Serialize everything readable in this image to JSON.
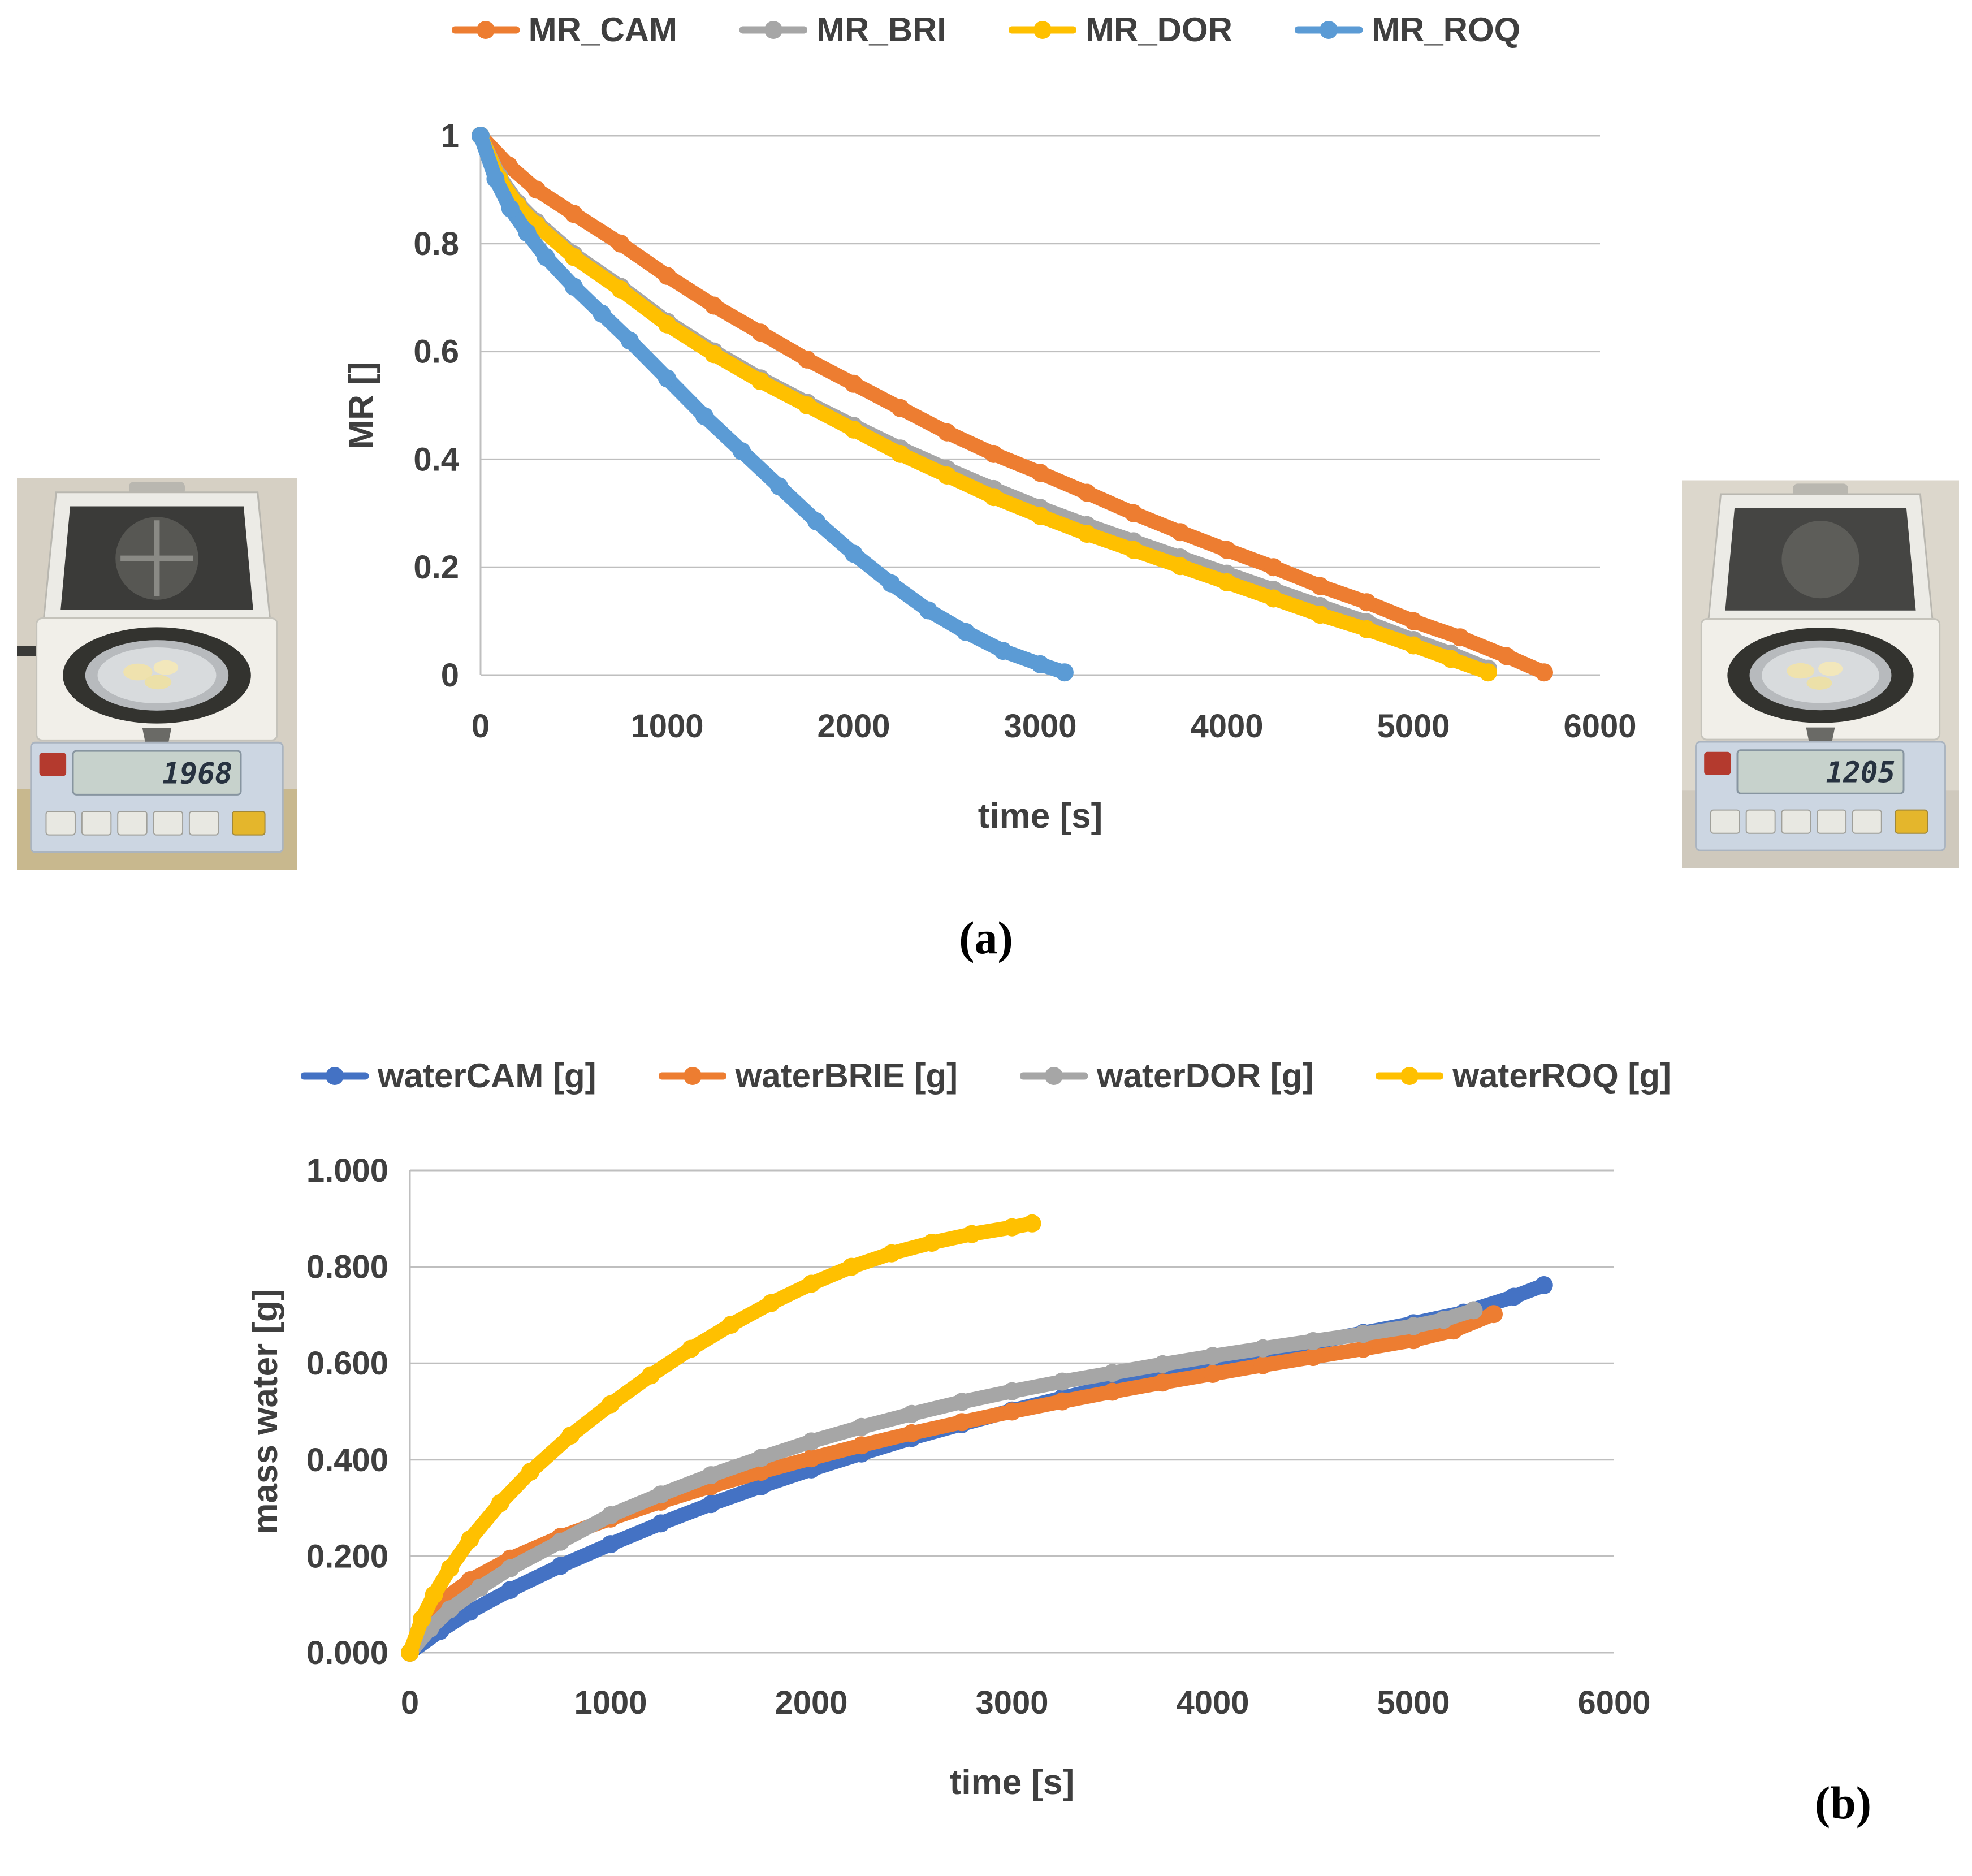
{
  "figure": {
    "caption_a": "(a)",
    "caption_b": "(b)"
  },
  "photos": {
    "left": {
      "display_reading": "1968"
    },
    "right": {
      "display_reading": "1205"
    }
  },
  "chart_data": [
    {
      "type": "line",
      "title": "",
      "xlabel": "time [s]",
      "ylabel": "MR []",
      "xlim": [
        0,
        6000
      ],
      "ylim": [
        0,
        1
      ],
      "xticks": [
        0,
        1000,
        2000,
        3000,
        4000,
        5000,
        6000
      ],
      "xtick_labels": [
        "0",
        "1000",
        "2000",
        "3000",
        "4000",
        "5000",
        "6000"
      ],
      "yticks": [
        0,
        0.2,
        0.4,
        0.6,
        0.8,
        1
      ],
      "ytick_labels": [
        "0",
        "0.2",
        "0.4",
        "0.6",
        "0.8",
        "1"
      ],
      "grid": "horizontal",
      "legend_position": "top",
      "series": [
        {
          "name": "MR_CAM",
          "color": "#ED7D31",
          "points": [
            [
              0,
              1
            ],
            [
              150,
              0.945
            ],
            [
              300,
              0.9
            ],
            [
              500,
              0.855
            ],
            [
              750,
              0.8
            ],
            [
              1000,
              0.74
            ],
            [
              1250,
              0.685
            ],
            [
              1500,
              0.635
            ],
            [
              1750,
              0.585
            ],
            [
              2000,
              0.54
            ],
            [
              2250,
              0.495
            ],
            [
              2500,
              0.45
            ],
            [
              2750,
              0.41
            ],
            [
              3000,
              0.375
            ],
            [
              3250,
              0.338
            ],
            [
              3500,
              0.3
            ],
            [
              3750,
              0.265
            ],
            [
              4000,
              0.232
            ],
            [
              4250,
              0.2
            ],
            [
              4500,
              0.165
            ],
            [
              4750,
              0.135
            ],
            [
              5000,
              0.1
            ],
            [
              5250,
              0.07
            ],
            [
              5500,
              0.035
            ],
            [
              5700,
              0.005
            ]
          ]
        },
        {
          "name": "MR_BRI",
          "color": "#A6A6A6",
          "points": [
            [
              0,
              1
            ],
            [
              100,
              0.925
            ],
            [
              200,
              0.875
            ],
            [
              300,
              0.84
            ],
            [
              500,
              0.78
            ],
            [
              750,
              0.72
            ],
            [
              1000,
              0.655
            ],
            [
              1250,
              0.6
            ],
            [
              1500,
              0.55
            ],
            [
              1750,
              0.505
            ],
            [
              2000,
              0.462
            ],
            [
              2250,
              0.42
            ],
            [
              2500,
              0.382
            ],
            [
              2750,
              0.345
            ],
            [
              3000,
              0.31
            ],
            [
              3250,
              0.278
            ],
            [
              3500,
              0.248
            ],
            [
              3750,
              0.218
            ],
            [
              4000,
              0.188
            ],
            [
              4250,
              0.158
            ],
            [
              4500,
              0.128
            ],
            [
              4750,
              0.098
            ],
            [
              5000,
              0.065
            ],
            [
              5200,
              0.04
            ],
            [
              5400,
              0.012
            ]
          ]
        },
        {
          "name": "MR_DOR",
          "color": "#FFC000",
          "points": [
            [
              0,
              1
            ],
            [
              100,
              0.92
            ],
            [
              200,
              0.87
            ],
            [
              300,
              0.835
            ],
            [
              500,
              0.775
            ],
            [
              750,
              0.715
            ],
            [
              1000,
              0.65
            ],
            [
              1250,
              0.595
            ],
            [
              1500,
              0.545
            ],
            [
              1750,
              0.5
            ],
            [
              2000,
              0.455
            ],
            [
              2250,
              0.41
            ],
            [
              2500,
              0.37
            ],
            [
              2750,
              0.33
            ],
            [
              3000,
              0.295
            ],
            [
              3250,
              0.262
            ],
            [
              3500,
              0.232
            ],
            [
              3750,
              0.202
            ],
            [
              4000,
              0.172
            ],
            [
              4250,
              0.142
            ],
            [
              4500,
              0.112
            ],
            [
              4750,
              0.085
            ],
            [
              5000,
              0.055
            ],
            [
              5200,
              0.03
            ],
            [
              5400,
              0.005
            ]
          ]
        },
        {
          "name": "MR_ROQ",
          "color": "#5B9BD5",
          "points": [
            [
              0,
              1
            ],
            [
              80,
              0.92
            ],
            [
              160,
              0.865
            ],
            [
              250,
              0.82
            ],
            [
              350,
              0.775
            ],
            [
              500,
              0.72
            ],
            [
              650,
              0.67
            ],
            [
              800,
              0.62
            ],
            [
              1000,
              0.55
            ],
            [
              1200,
              0.48
            ],
            [
              1400,
              0.415
            ],
            [
              1600,
              0.35
            ],
            [
              1800,
              0.285
            ],
            [
              2000,
              0.225
            ],
            [
              2200,
              0.17
            ],
            [
              2400,
              0.12
            ],
            [
              2600,
              0.08
            ],
            [
              2800,
              0.045
            ],
            [
              3000,
              0.02
            ],
            [
              3130,
              0.005
            ]
          ]
        }
      ]
    },
    {
      "type": "line",
      "title": "",
      "xlabel": "time [s]",
      "ylabel": "mass water  [g]",
      "xlim": [
        0,
        6000
      ],
      "ylim": [
        0,
        1
      ],
      "xticks": [
        0,
        1000,
        2000,
        3000,
        4000,
        5000,
        6000
      ],
      "xtick_labels": [
        "0",
        "1000",
        "2000",
        "3000",
        "4000",
        "5000",
        "6000"
      ],
      "yticks": [
        0,
        0.2,
        0.4,
        0.6,
        0.8,
        1
      ],
      "ytick_labels": [
        "0.000",
        "0.200",
        "0.400",
        "0.600",
        "0.800",
        "1.000"
      ],
      "grid": "horizontal",
      "legend_position": "top",
      "series": [
        {
          "name": "waterCAM [g]",
          "color": "#4472C4",
          "points": [
            [
              0,
              0
            ],
            [
              150,
              0.045
            ],
            [
              300,
              0.085
            ],
            [
              500,
              0.13
            ],
            [
              750,
              0.18
            ],
            [
              1000,
              0.225
            ],
            [
              1250,
              0.268
            ],
            [
              1500,
              0.308
            ],
            [
              1750,
              0.345
            ],
            [
              2000,
              0.38
            ],
            [
              2250,
              0.413
            ],
            [
              2500,
              0.445
            ],
            [
              2750,
              0.474
            ],
            [
              3000,
              0.502
            ],
            [
              3250,
              0.528
            ],
            [
              3500,
              0.553
            ],
            [
              3750,
              0.577
            ],
            [
              4000,
              0.6
            ],
            [
              4250,
              0.622
            ],
            [
              4500,
              0.643
            ],
            [
              4750,
              0.663
            ],
            [
              5000,
              0.683
            ],
            [
              5250,
              0.705
            ],
            [
              5500,
              0.738
            ],
            [
              5650,
              0.762
            ]
          ]
        },
        {
          "name": "waterBRIE [g]",
          "color": "#ED7D31",
          "points": [
            [
              0,
              0
            ],
            [
              80,
              0.075
            ],
            [
              150,
              0.105
            ],
            [
              300,
              0.15
            ],
            [
              500,
              0.195
            ],
            [
              750,
              0.24
            ],
            [
              1000,
              0.278
            ],
            [
              1250,
              0.313
            ],
            [
              1500,
              0.345
            ],
            [
              1750,
              0.375
            ],
            [
              2000,
              0.403
            ],
            [
              2250,
              0.43
            ],
            [
              2500,
              0.455
            ],
            [
              2750,
              0.478
            ],
            [
              3000,
              0.5
            ],
            [
              3250,
              0.521
            ],
            [
              3500,
              0.541
            ],
            [
              3750,
              0.56
            ],
            [
              4000,
              0.578
            ],
            [
              4250,
              0.596
            ],
            [
              4500,
              0.613
            ],
            [
              4750,
              0.63
            ],
            [
              5000,
              0.648
            ],
            [
              5200,
              0.668
            ],
            [
              5400,
              0.702
            ]
          ]
        },
        {
          "name": "waterDOR [g]",
          "color": "#A6A6A6",
          "points": [
            [
              0,
              0
            ],
            [
              100,
              0.05
            ],
            [
              200,
              0.09
            ],
            [
              350,
              0.135
            ],
            [
              500,
              0.175
            ],
            [
              750,
              0.23
            ],
            [
              1000,
              0.285
            ],
            [
              1250,
              0.328
            ],
            [
              1500,
              0.368
            ],
            [
              1750,
              0.404
            ],
            [
              2000,
              0.438
            ],
            [
              2250,
              0.468
            ],
            [
              2500,
              0.495
            ],
            [
              2750,
              0.52
            ],
            [
              3000,
              0.542
            ],
            [
              3250,
              0.562
            ],
            [
              3500,
              0.58
            ],
            [
              3750,
              0.598
            ],
            [
              4000,
              0.615
            ],
            [
              4250,
              0.631
            ],
            [
              4500,
              0.646
            ],
            [
              4750,
              0.661
            ],
            [
              5000,
              0.677
            ],
            [
              5150,
              0.69
            ],
            [
              5300,
              0.71
            ]
          ]
        },
        {
          "name": "waterROQ [g]",
          "color": "#FFC000",
          "points": [
            [
              0,
              0
            ],
            [
              60,
              0.07
            ],
            [
              120,
              0.12
            ],
            [
              200,
              0.175
            ],
            [
              300,
              0.235
            ],
            [
              450,
              0.31
            ],
            [
              600,
              0.375
            ],
            [
              800,
              0.45
            ],
            [
              1000,
              0.515
            ],
            [
              1200,
              0.575
            ],
            [
              1400,
              0.63
            ],
            [
              1600,
              0.68
            ],
            [
              1800,
              0.725
            ],
            [
              2000,
              0.765
            ],
            [
              2200,
              0.8
            ],
            [
              2400,
              0.828
            ],
            [
              2600,
              0.85
            ],
            [
              2800,
              0.868
            ],
            [
              3000,
              0.882
            ],
            [
              3100,
              0.89
            ]
          ]
        }
      ]
    }
  ]
}
